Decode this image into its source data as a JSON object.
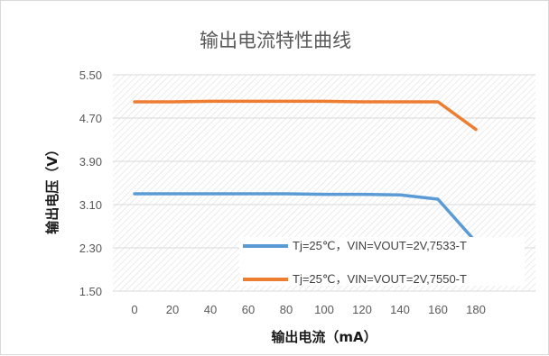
{
  "chart_data": {
    "type": "line",
    "title": "输出电流特性曲线",
    "xlabel": "输出电流（mA）",
    "ylabel": "输出电压（V）",
    "x": [
      0,
      20,
      40,
      60,
      80,
      100,
      120,
      140,
      160,
      180
    ],
    "x_tick_labels": [
      "0",
      "20",
      "40",
      "60",
      "80",
      "100",
      "120",
      "140",
      "160",
      "180"
    ],
    "y_tick_labels": [
      "1.50",
      "2.30",
      "3.10",
      "3.90",
      "4.70",
      "5.50"
    ],
    "y_ticks": [
      1.5,
      2.3,
      3.1,
      3.9,
      4.7,
      5.5
    ],
    "ylim": [
      1.5,
      5.5
    ],
    "grid": true,
    "legend_position": "bottom-right",
    "series": [
      {
        "name": "Tj=25℃，VIN=VOUT=2V,7533-T",
        "color": "#5B9BD5",
        "values": [
          3.3,
          3.3,
          3.3,
          3.3,
          3.3,
          3.29,
          3.29,
          3.28,
          3.2,
          2.41
        ]
      },
      {
        "name": "Tj=25℃，VIN=VOUT=2V,7550-T",
        "color": "#ED7D31",
        "values": [
          5.0,
          5.0,
          5.01,
          5.01,
          5.01,
          5.01,
          5.0,
          5.0,
          5.0,
          4.49
        ]
      }
    ]
  },
  "colors": {
    "grid": "#d9d9d9",
    "hatch": "#dedede"
  }
}
